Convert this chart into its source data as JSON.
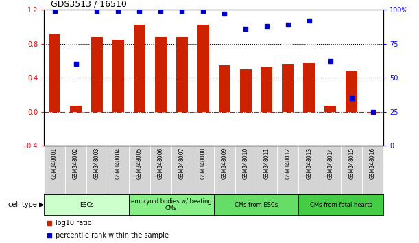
{
  "title": "GDS3513 / 16510",
  "samples": [
    "GSM348001",
    "GSM348002",
    "GSM348003",
    "GSM348004",
    "GSM348005",
    "GSM348006",
    "GSM348007",
    "GSM348008",
    "GSM348009",
    "GSM348010",
    "GSM348011",
    "GSM348012",
    "GSM348013",
    "GSM348014",
    "GSM348015",
    "GSM348016"
  ],
  "log10_ratio": [
    0.92,
    0.07,
    0.88,
    0.85,
    1.02,
    0.88,
    0.88,
    1.02,
    0.55,
    0.5,
    0.52,
    0.56,
    0.57,
    0.07,
    0.48,
    -0.02
  ],
  "percentile_rank": [
    99,
    60,
    99,
    99,
    99,
    99,
    99,
    99,
    97,
    86,
    88,
    89,
    92,
    62,
    35,
    25
  ],
  "bar_color": "#cc2200",
  "dot_color": "#0000cc",
  "cell_types": [
    {
      "label": "ESCs",
      "start": 0,
      "end": 3,
      "color": "#ccffcc"
    },
    {
      "label": "embryoid bodies w/ beating\nCMs",
      "start": 4,
      "end": 7,
      "color": "#88ee88"
    },
    {
      "label": "CMs from ESCs",
      "start": 8,
      "end": 11,
      "color": "#66dd66"
    },
    {
      "label": "CMs from fetal hearts",
      "start": 12,
      "end": 15,
      "color": "#44cc44"
    }
  ],
  "ylim_left": [
    -0.4,
    1.2
  ],
  "ylim_right": [
    0,
    100
  ],
  "yticks_left": [
    -0.4,
    0.0,
    0.4,
    0.8,
    1.2
  ],
  "yticks_right": [
    0,
    25,
    50,
    75,
    100
  ],
  "bar_width": 0.55,
  "dot_size": 4
}
